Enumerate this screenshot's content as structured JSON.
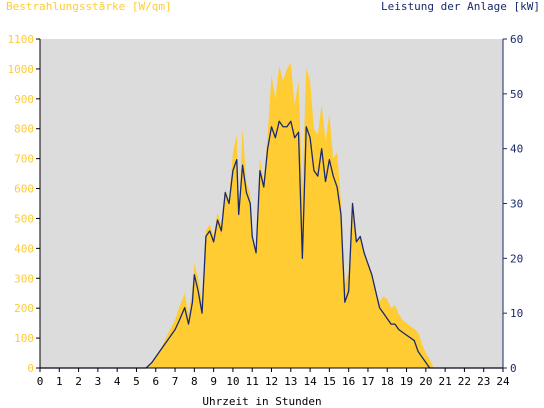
{
  "chart_data": {
    "type": "area",
    "left_axis_title": "Bestrahlungsstärke [W/qm]",
    "right_axis_title": "Leistung der Anlage [kW]",
    "xlabel": "Uhrzeit in Stunden",
    "xlim": [
      0,
      24
    ],
    "left_ylim": [
      0,
      1100
    ],
    "right_ylim": [
      0,
      60
    ],
    "x_ticks": [
      "0",
      "1",
      "2",
      "3",
      "4",
      "5",
      "6",
      "7",
      "8",
      "9",
      "10",
      "11",
      "12",
      "13",
      "14",
      "15",
      "16",
      "17",
      "18",
      "19",
      "20",
      "21",
      "22",
      "23",
      "24"
    ],
    "left_ticks": [
      "0",
      "100",
      "200",
      "300",
      "400",
      "500",
      "600",
      "700",
      "800",
      "900",
      "1000",
      "1100"
    ],
    "right_ticks": [
      "0",
      "10",
      "20",
      "30",
      "40",
      "50",
      "60"
    ],
    "grid": false,
    "colors": {
      "irradiance": "#ffcc33",
      "power": "#1a2a6c",
      "left_axis_text": "#ffcc33",
      "right_axis_text": "#1a2a6c",
      "plot_background": "#dcdcdc"
    },
    "series": [
      {
        "axis": "left",
        "x": [
          0,
          5.5,
          5.8,
          6.0,
          6.3,
          6.6,
          7.0,
          7.2,
          7.5,
          7.7,
          7.9,
          8.0,
          8.2,
          8.4,
          8.6,
          8.8,
          9.0,
          9.2,
          9.4,
          9.6,
          9.8,
          10.0,
          10.2,
          10.3,
          10.5,
          10.7,
          10.9,
          11.0,
          11.2,
          11.4,
          11.6,
          11.8,
          12.0,
          12.2,
          12.4,
          12.6,
          12.8,
          13.0,
          13.2,
          13.4,
          13.6,
          13.8,
          14.0,
          14.2,
          14.4,
          14.6,
          14.8,
          15.0,
          15.2,
          15.4,
          15.6,
          15.8,
          16.0,
          16.2,
          16.4,
          16.6,
          16.8,
          17.0,
          17.2,
          17.4,
          17.6,
          17.8,
          18.0,
          18.2,
          18.4,
          18.6,
          18.8,
          19.0,
          19.2,
          19.4,
          19.6,
          19.8,
          20.0,
          20.2,
          20.4,
          24
        ],
        "values": [
          0,
          0,
          20,
          40,
          70,
          110,
          160,
          200,
          250,
          180,
          260,
          350,
          300,
          220,
          460,
          480,
          440,
          520,
          480,
          600,
          560,
          720,
          780,
          500,
          800,
          620,
          580,
          440,
          380,
          700,
          620,
          780,
          980,
          900,
          1010,
          960,
          1000,
          1020,
          880,
          960,
          600,
          1000,
          960,
          800,
          780,
          880,
          760,
          850,
          700,
          720,
          560,
          280,
          320,
          560,
          420,
          440,
          380,
          350,
          320,
          260,
          220,
          240,
          230,
          200,
          210,
          180,
          160,
          150,
          140,
          130,
          120,
          80,
          50,
          30,
          0,
          0
        ]
      },
      {
        "axis": "right",
        "x": [
          0,
          5.5,
          5.8,
          6.0,
          6.3,
          6.6,
          7.0,
          7.2,
          7.5,
          7.7,
          7.9,
          8.0,
          8.2,
          8.4,
          8.6,
          8.8,
          9.0,
          9.2,
          9.4,
          9.6,
          9.8,
          10.0,
          10.2,
          10.3,
          10.5,
          10.7,
          10.9,
          11.0,
          11.2,
          11.4,
          11.6,
          11.8,
          12.0,
          12.2,
          12.4,
          12.6,
          12.8,
          13.0,
          13.2,
          13.4,
          13.6,
          13.8,
          14.0,
          14.2,
          14.4,
          14.6,
          14.8,
          15.0,
          15.2,
          15.4,
          15.6,
          15.8,
          16.0,
          16.2,
          16.4,
          16.6,
          16.8,
          17.0,
          17.2,
          17.4,
          17.6,
          17.8,
          18.0,
          18.2,
          18.4,
          18.6,
          18.8,
          19.0,
          19.2,
          19.4,
          19.6,
          19.8,
          20.0,
          20.2,
          20.4,
          24
        ],
        "values": [
          0,
          0,
          1,
          2,
          3.5,
          5,
          7,
          8.5,
          11,
          8,
          12,
          17,
          14,
          10,
          24,
          25,
          23,
          27,
          25,
          32,
          30,
          36,
          38,
          28,
          37,
          32,
          30,
          24,
          21,
          36,
          33,
          40,
          44,
          42,
          45,
          44,
          44,
          45,
          42,
          43,
          20,
          44,
          42,
          36,
          35,
          40,
          34,
          38,
          35,
          33,
          28,
          12,
          14,
          30,
          23,
          24,
          21,
          19,
          17,
          14,
          11,
          10,
          9,
          8,
          8,
          7,
          6.5,
          6,
          5.5,
          5,
          3,
          2,
          1,
          0,
          0,
          0
        ]
      }
    ]
  }
}
